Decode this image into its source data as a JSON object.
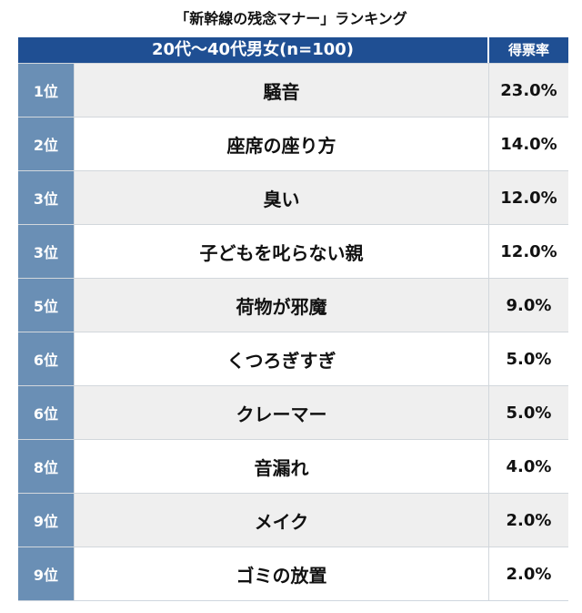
{
  "chart_data": {
    "type": "table",
    "title": "「新幹線の残念マナー」ランキング",
    "header": {
      "group_label": "20代〜40代男女(n=100)",
      "score_label": "得票率"
    },
    "rows": [
      {
        "rank": "1位",
        "item": "騒音",
        "value_label": "23.0%",
        "value": 23.0
      },
      {
        "rank": "2位",
        "item": "座席の座り方",
        "value_label": "14.0%",
        "value": 14.0
      },
      {
        "rank": "3位",
        "item": "臭い",
        "value_label": "12.0%",
        "value": 12.0
      },
      {
        "rank": "3位",
        "item": "子どもを叱らない親",
        "value_label": "12.0%",
        "value": 12.0
      },
      {
        "rank": "5位",
        "item": "荷物が邪魔",
        "value_label": "9.0%",
        "value": 9.0
      },
      {
        "rank": "6位",
        "item": "くつろぎすぎ",
        "value_label": "5.0%",
        "value": 5.0
      },
      {
        "rank": "6位",
        "item": "クレーマー",
        "value_label": "5.0%",
        "value": 5.0
      },
      {
        "rank": "8位",
        "item": "音漏れ",
        "value_label": "4.0%",
        "value": 4.0
      },
      {
        "rank": "9位",
        "item": "メイク",
        "value_label": "2.0%",
        "value": 2.0
      },
      {
        "rank": "9位",
        "item": "ゴミの放置",
        "value_label": "2.0%",
        "value": 2.0
      }
    ]
  }
}
